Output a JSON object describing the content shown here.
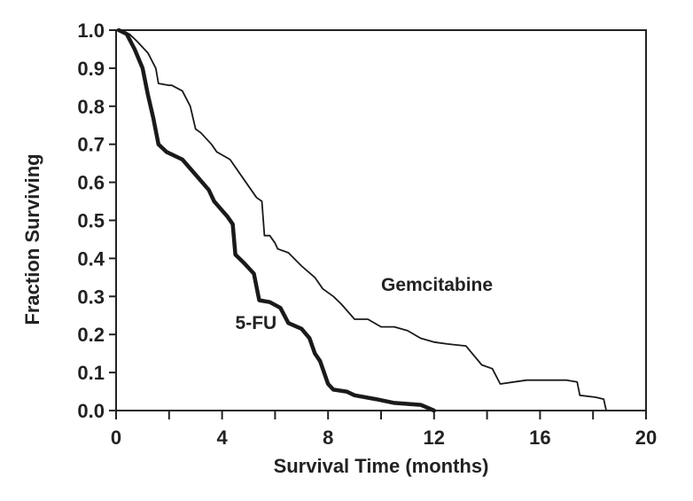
{
  "chart_data": {
    "type": "line",
    "title": "",
    "xlabel": "Survival Time (months)",
    "ylabel": "Fraction Surviving",
    "xlim": [
      0,
      20
    ],
    "ylim": [
      0,
      1.0
    ],
    "grid": false,
    "xticks": [
      {
        "value": 0,
        "label": "0"
      },
      {
        "value": 4,
        "label": "4"
      },
      {
        "value": 8,
        "label": "8"
      },
      {
        "value": 12,
        "label": "12"
      },
      {
        "value": 16,
        "label": "16"
      },
      {
        "value": 20,
        "label": "20"
      }
    ],
    "xminor": [
      2,
      6,
      10,
      14,
      18
    ],
    "yticks": [
      {
        "value": 0.0,
        "label": "0.0"
      },
      {
        "value": 0.1,
        "label": "0.1"
      },
      {
        "value": 0.2,
        "label": "0.2"
      },
      {
        "value": 0.3,
        "label": "0.3"
      },
      {
        "value": 0.4,
        "label": "0.4"
      },
      {
        "value": 0.5,
        "label": "0.5"
      },
      {
        "value": 0.6,
        "label": "0.6"
      },
      {
        "value": 0.7,
        "label": "0.7"
      },
      {
        "value": 0.8,
        "label": "0.8"
      },
      {
        "value": 0.9,
        "label": "0.9"
      },
      {
        "value": 1.0,
        "label": "1.0"
      }
    ],
    "series": [
      {
        "name": "Gemcitabine",
        "label_anchor": {
          "x": 10.0,
          "y": 0.315
        },
        "stroke_weight": "thin",
        "points": [
          [
            0.1,
            1.0
          ],
          [
            0.5,
            0.99
          ],
          [
            0.8,
            0.97
          ],
          [
            1.2,
            0.94
          ],
          [
            1.5,
            0.9
          ],
          [
            1.6,
            0.86
          ],
          [
            2.0,
            0.855
          ],
          [
            2.1,
            0.855
          ],
          [
            2.5,
            0.84
          ],
          [
            2.8,
            0.8
          ],
          [
            3.0,
            0.74
          ],
          [
            3.2,
            0.73
          ],
          [
            3.6,
            0.7
          ],
          [
            3.8,
            0.68
          ],
          [
            4.3,
            0.66
          ],
          [
            4.8,
            0.61
          ],
          [
            5.3,
            0.56
          ],
          [
            5.5,
            0.55
          ],
          [
            5.6,
            0.46
          ],
          [
            5.8,
            0.46
          ],
          [
            6.0,
            0.44
          ],
          [
            6.1,
            0.425
          ],
          [
            6.5,
            0.415
          ],
          [
            7.0,
            0.38
          ],
          [
            7.5,
            0.35
          ],
          [
            7.8,
            0.32
          ],
          [
            8.2,
            0.3
          ],
          [
            8.5,
            0.28
          ],
          [
            9.0,
            0.24
          ],
          [
            9.5,
            0.24
          ],
          [
            10.0,
            0.22
          ],
          [
            10.5,
            0.22
          ],
          [
            11.0,
            0.21
          ],
          [
            11.5,
            0.19
          ],
          [
            12.0,
            0.18
          ],
          [
            12.5,
            0.175
          ],
          [
            13.2,
            0.17
          ],
          [
            13.8,
            0.12
          ],
          [
            14.2,
            0.11
          ],
          [
            14.5,
            0.07
          ],
          [
            15.0,
            0.075
          ],
          [
            15.5,
            0.08
          ],
          [
            17.0,
            0.08
          ],
          [
            17.4,
            0.075
          ],
          [
            17.5,
            0.04
          ],
          [
            18.1,
            0.035
          ],
          [
            18.4,
            0.03
          ],
          [
            18.5,
            0.0
          ]
        ]
      },
      {
        "name": "5-FU",
        "label_anchor": {
          "x": 4.5,
          "y": 0.215
        },
        "stroke_weight": "thick",
        "points": [
          [
            0.1,
            1.0
          ],
          [
            0.4,
            0.99
          ],
          [
            0.7,
            0.95
          ],
          [
            1.0,
            0.9
          ],
          [
            1.2,
            0.83
          ],
          [
            1.4,
            0.77
          ],
          [
            1.6,
            0.7
          ],
          [
            1.9,
            0.68
          ],
          [
            2.5,
            0.66
          ],
          [
            3.0,
            0.62
          ],
          [
            3.5,
            0.58
          ],
          [
            3.7,
            0.55
          ],
          [
            4.2,
            0.51
          ],
          [
            4.4,
            0.49
          ],
          [
            4.5,
            0.41
          ],
          [
            4.8,
            0.39
          ],
          [
            5.2,
            0.36
          ],
          [
            5.4,
            0.29
          ],
          [
            5.8,
            0.285
          ],
          [
            6.2,
            0.27
          ],
          [
            6.5,
            0.23
          ],
          [
            7.0,
            0.215
          ],
          [
            7.3,
            0.19
          ],
          [
            7.5,
            0.15
          ],
          [
            7.7,
            0.13
          ],
          [
            8.0,
            0.07
          ],
          [
            8.2,
            0.055
          ],
          [
            8.7,
            0.05
          ],
          [
            9.0,
            0.04
          ],
          [
            9.8,
            0.03
          ],
          [
            10.5,
            0.02
          ],
          [
            11.5,
            0.015
          ],
          [
            12.0,
            0.0
          ]
        ]
      }
    ]
  }
}
